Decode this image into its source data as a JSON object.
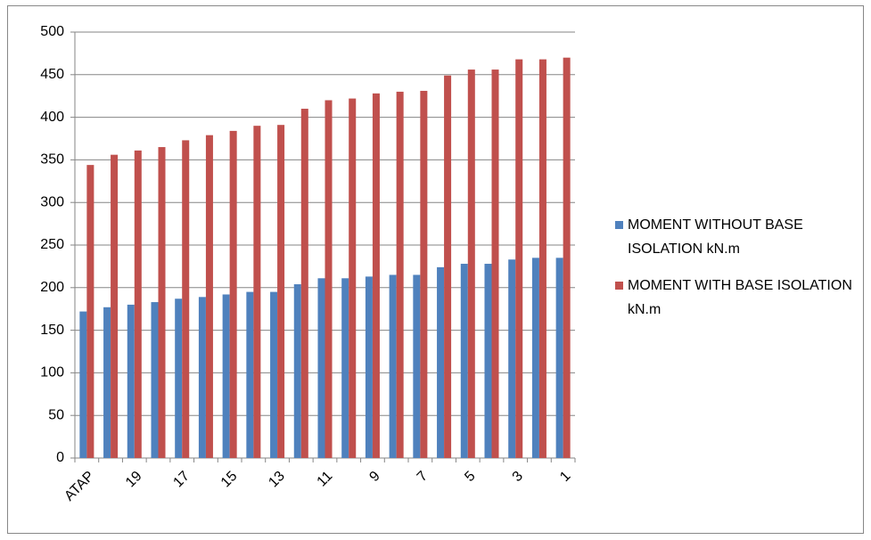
{
  "chart_data": {
    "type": "bar",
    "categories": [
      "ATAP",
      null,
      "19",
      null,
      "17",
      null,
      "15",
      null,
      "13",
      null,
      "11",
      null,
      "9",
      null,
      "7",
      null,
      "5",
      null,
      "3",
      null,
      "1"
    ],
    "series": [
      {
        "name": "MOMENT WITHOUT BASE ISOLATION kN.m",
        "color": "#4f81bd",
        "values": [
          172,
          177,
          180,
          183,
          187,
          189,
          192,
          195,
          195,
          204,
          211,
          211,
          213,
          215,
          215,
          224,
          228,
          228,
          233,
          235,
          235
        ]
      },
      {
        "name": "MOMENT WITH BASE ISOLATION kN.m",
        "color": "#c0504d",
        "values": [
          344,
          356,
          361,
          365,
          373,
          379,
          384,
          390,
          391,
          410,
          420,
          422,
          428,
          430,
          431,
          449,
          456,
          456,
          468,
          468,
          470
        ]
      }
    ],
    "ylim": [
      0,
      500
    ],
    "yticks": [
      0,
      50,
      100,
      150,
      200,
      250,
      300,
      350,
      400,
      450,
      500
    ],
    "grid": true,
    "legend": "right"
  }
}
